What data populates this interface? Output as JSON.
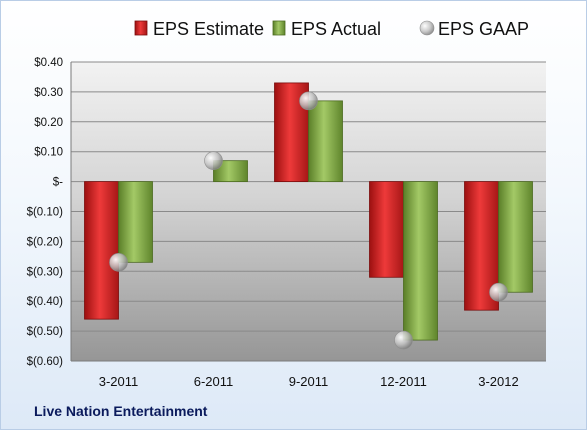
{
  "company": "Live Nation Entertainment",
  "chart_data": {
    "type": "bar",
    "categories": [
      "3-2011",
      "6-2011",
      "9-2011",
      "12-2011",
      "3-2012"
    ],
    "series": [
      {
        "name": "EPS Estimate",
        "kind": "bar",
        "color": "#d42a2a",
        "values": [
          -0.46,
          null,
          0.33,
          -0.32,
          -0.43
        ]
      },
      {
        "name": "EPS Actual",
        "kind": "bar",
        "color": "#86b04a",
        "values": [
          -0.27,
          0.07,
          0.27,
          -0.53,
          -0.37
        ]
      },
      {
        "name": "EPS GAAP",
        "kind": "marker",
        "color": "#b7b7b7",
        "values": [
          -0.27,
          0.07,
          0.27,
          -0.53,
          -0.37
        ]
      }
    ],
    "y_ticks": [
      {
        "value": 0.4,
        "label": "$0.40"
      },
      {
        "value": 0.3,
        "label": "$0.30"
      },
      {
        "value": 0.2,
        "label": "$0.20"
      },
      {
        "value": 0.1,
        "label": "$0.10"
      },
      {
        "value": 0,
        "label": "$-"
      },
      {
        "value": -0.1,
        "label": "$(0.10)"
      },
      {
        "value": -0.2,
        "label": "$(0.20)"
      },
      {
        "value": -0.3,
        "label": "$(0.30)"
      },
      {
        "value": -0.4,
        "label": "$(0.40)"
      },
      {
        "value": -0.5,
        "label": "$(0.50)"
      },
      {
        "value": -0.6,
        "label": "$(0.60)"
      }
    ],
    "ylim": [
      -0.6,
      0.4
    ],
    "grid": true,
    "legend": "top"
  }
}
